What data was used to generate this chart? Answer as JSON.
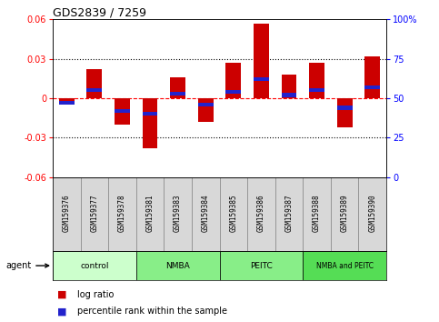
{
  "title": "GDS2839 / 7259",
  "samples": [
    "GSM159376",
    "GSM159377",
    "GSM159378",
    "GSM159381",
    "GSM159383",
    "GSM159384",
    "GSM159385",
    "GSM159386",
    "GSM159387",
    "GSM159388",
    "GSM159389",
    "GSM159390"
  ],
  "log_ratio": [
    -0.002,
    0.022,
    -0.02,
    -0.038,
    0.016,
    -0.018,
    0.027,
    0.057,
    0.018,
    0.027,
    -0.022,
    0.032
  ],
  "percentile": [
    47,
    55,
    42,
    40,
    53,
    46,
    54,
    62,
    52,
    55,
    44,
    57
  ],
  "groups": [
    {
      "label": "control",
      "start": 0,
      "end": 3
    },
    {
      "label": "NMBA",
      "start": 3,
      "end": 6
    },
    {
      "label": "PEITC",
      "start": 6,
      "end": 9
    },
    {
      "label": "NMBA and PEITC",
      "start": 9,
      "end": 12
    }
  ],
  "group_colors": [
    "#ccffcc",
    "#88ee88",
    "#88ee88",
    "#55dd55"
  ],
  "ylim": [
    -0.06,
    0.06
  ],
  "yticks_left": [
    -0.06,
    -0.03,
    0,
    0.03,
    0.06
  ],
  "yticks_right": [
    0,
    25,
    50,
    75,
    100
  ],
  "bar_color_red": "#cc0000",
  "bar_color_blue": "#2222cc",
  "bar_width": 0.55,
  "blue_bar_height": 0.003
}
